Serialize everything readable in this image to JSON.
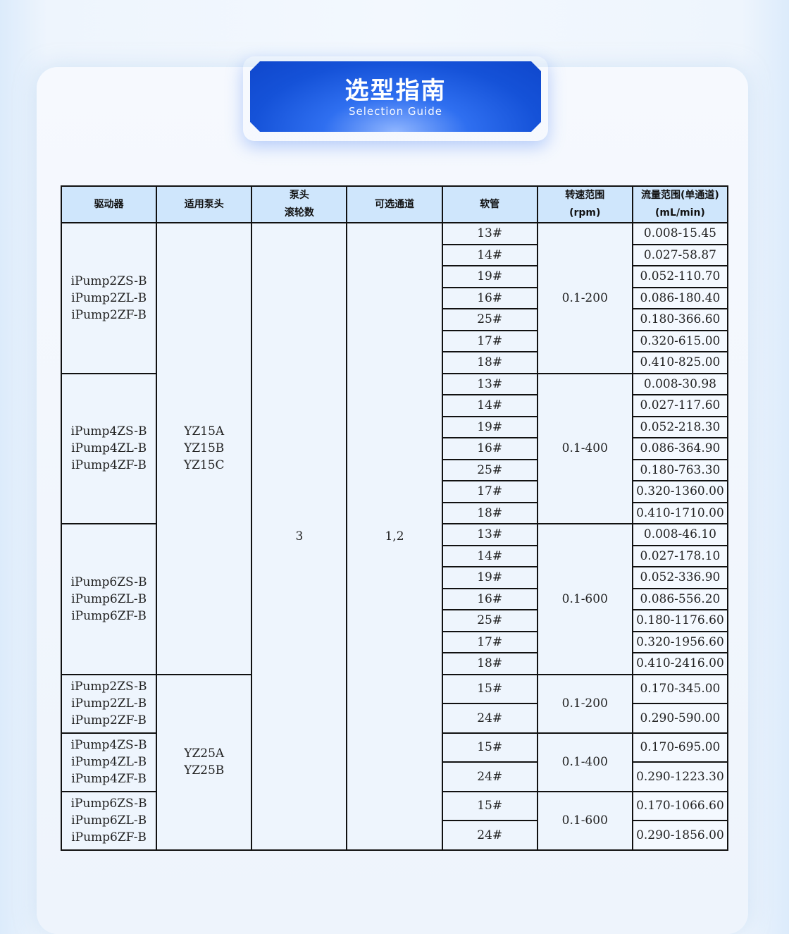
{
  "banner": {
    "title": "选型指南",
    "subtitle": "Selection Guide",
    "color": "#1552d8"
  },
  "table": {
    "headers": [
      [
        "驱动器"
      ],
      [
        "适用泵头"
      ],
      [
        "泵头",
        "滚轮数"
      ],
      [
        "可选通道"
      ],
      [
        "软管"
      ],
      [
        "转速范围",
        "(rpm)"
      ],
      [
        "流量范围(单通道)",
        "(mL/min)"
      ]
    ],
    "rollers": "3",
    "channels": "1,2",
    "pumpheads": [
      {
        "models": [
          "YZ15A",
          "YZ15B",
          "YZ15C"
        ]
      },
      {
        "models": [
          "YZ25A",
          "YZ25B"
        ]
      }
    ],
    "groups": [
      {
        "drivers": [
          "iPump2ZS-B",
          "iPump2ZL-B",
          "iPump2ZF-B"
        ],
        "speed": "0.1-200",
        "pumphead": 0,
        "rows": [
          [
            "13#",
            "0.008-15.45"
          ],
          [
            "14#",
            "0.027-58.87"
          ],
          [
            "19#",
            "0.052-110.70"
          ],
          [
            "16#",
            "0.086-180.40"
          ],
          [
            "25#",
            "0.180-366.60"
          ],
          [
            "17#",
            "0.320-615.00"
          ],
          [
            "18#",
            "0.410-825.00"
          ]
        ]
      },
      {
        "drivers": [
          "iPump4ZS-B",
          "iPump4ZL-B",
          "iPump4ZF-B"
        ],
        "speed": "0.1-400",
        "pumphead": 0,
        "rows": [
          [
            "13#",
            "0.008-30.98"
          ],
          [
            "14#",
            "0.027-117.60"
          ],
          [
            "19#",
            "0.052-218.30"
          ],
          [
            "16#",
            "0.086-364.90"
          ],
          [
            "25#",
            "0.180-763.30"
          ],
          [
            "17#",
            "0.320-1360.00"
          ],
          [
            "18#",
            "0.410-1710.00"
          ]
        ]
      },
      {
        "drivers": [
          "iPump6ZS-B",
          "iPump6ZL-B",
          "iPump6ZF-B"
        ],
        "speed": "0.1-600",
        "pumphead": 0,
        "rows": [
          [
            "13#",
            "0.008-46.10"
          ],
          [
            "14#",
            "0.027-178.10"
          ],
          [
            "19#",
            "0.052-336.90"
          ],
          [
            "16#",
            "0.086-556.20"
          ],
          [
            "25#",
            "0.180-1176.60"
          ],
          [
            "17#",
            "0.320-1956.60"
          ],
          [
            "18#",
            "0.410-2416.00"
          ]
        ]
      },
      {
        "drivers": [
          "iPump2ZS-B",
          "iPump2ZL-B",
          "iPump2ZF-B"
        ],
        "speed": "0.1-200",
        "pumphead": 1,
        "rows": [
          [
            "15#",
            "0.170-345.00"
          ],
          [
            "24#",
            "0.290-590.00"
          ]
        ]
      },
      {
        "drivers": [
          "iPump4ZS-B",
          "iPump4ZL-B",
          "iPump4ZF-B"
        ],
        "speed": "0.1-400",
        "pumphead": 1,
        "rows": [
          [
            "15#",
            "0.170-695.00"
          ],
          [
            "24#",
            "0.290-1223.30"
          ]
        ]
      },
      {
        "drivers": [
          "iPump6ZS-B",
          "iPump6ZL-B",
          "iPump6ZF-B"
        ],
        "speed": "0.1-600",
        "pumphead": 1,
        "rows": [
          [
            "15#",
            "0.170-1066.60"
          ],
          [
            "24#",
            "0.290-1856.00"
          ]
        ]
      }
    ]
  }
}
